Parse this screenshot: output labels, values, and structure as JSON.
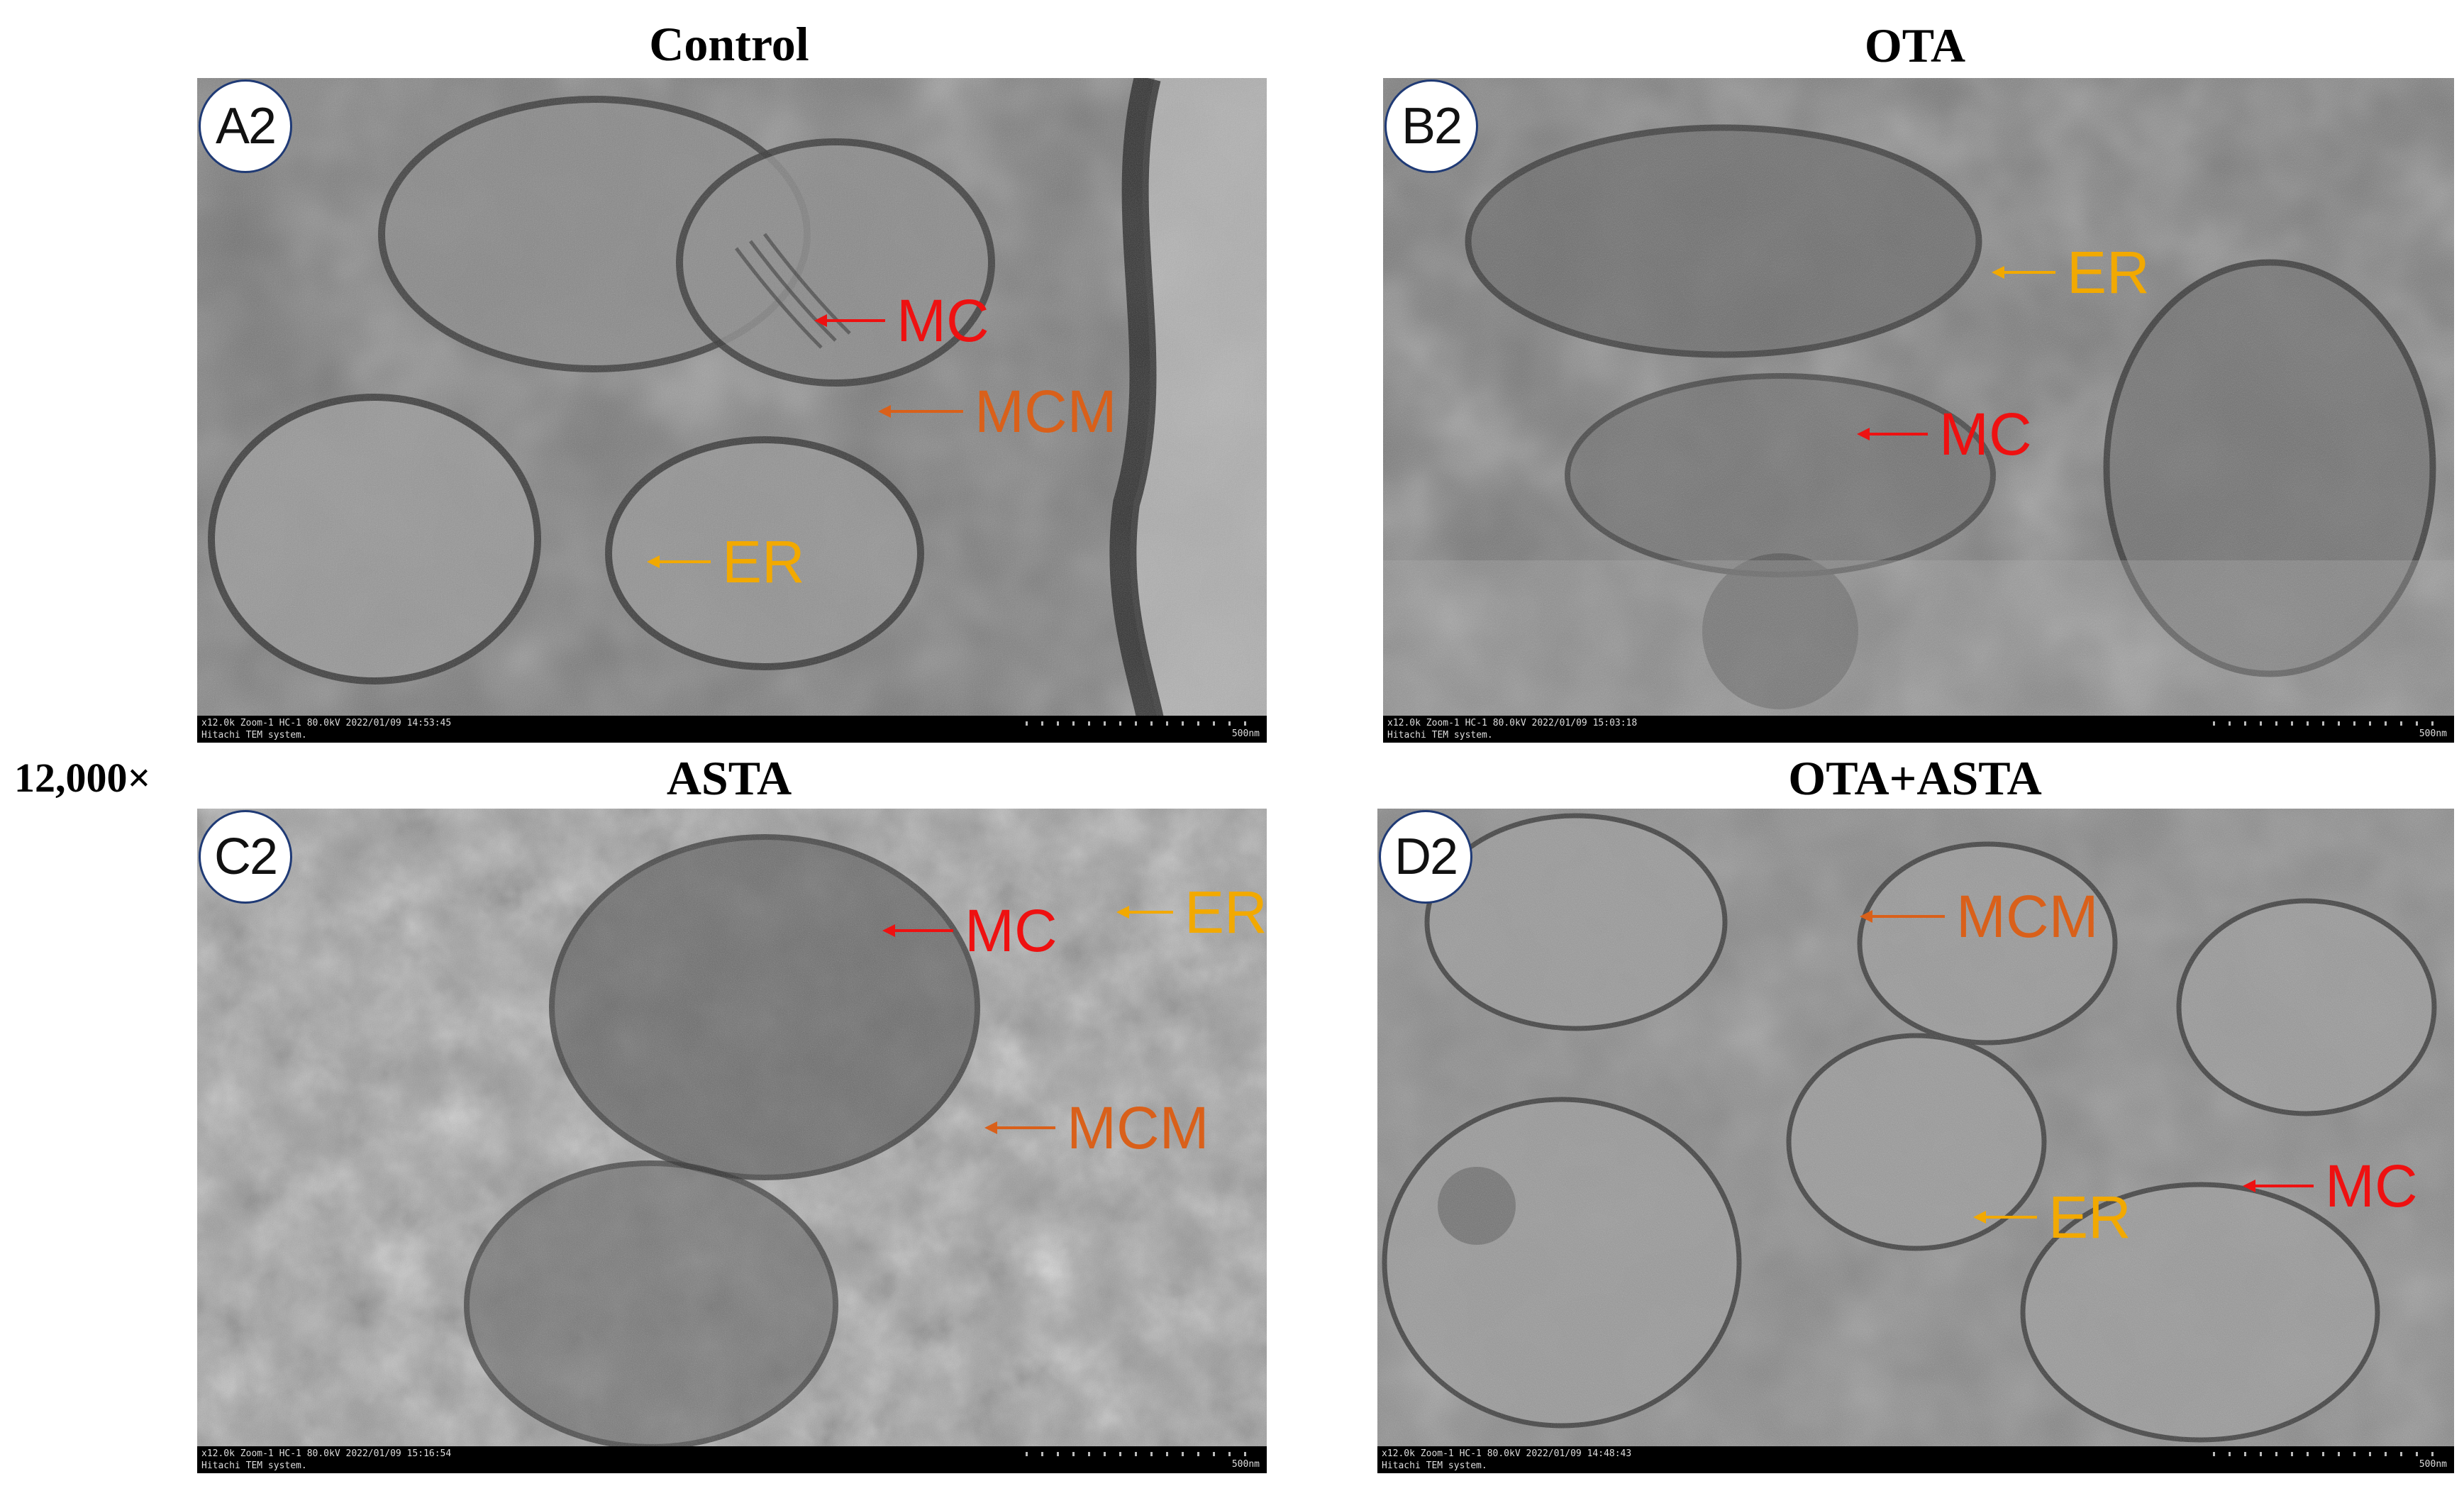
{
  "magnification": "12,000×",
  "colors": {
    "mc": "#ee1111",
    "mcm": "#d9601a",
    "er": "#f2a900"
  },
  "panels": [
    {
      "title": "Control",
      "badge": "A2",
      "status_line1": "x12.0k Zoom-1 HC-1 80.0kV 2022/01/09 14:53:45",
      "status_line2": "Hitachi TEM system.",
      "scale": "500nm",
      "annotations": [
        {
          "label": "MC",
          "color": "mc"
        },
        {
          "label": "MCM",
          "color": "mcm"
        },
        {
          "label": "ER",
          "color": "er"
        }
      ]
    },
    {
      "title": "OTA",
      "badge": "B2",
      "status_line1": "x12.0k Zoom-1 HC-1 80.0kV 2022/01/09 15:03:18",
      "status_line2": "Hitachi TEM system.",
      "scale": "500nm",
      "annotations": [
        {
          "label": "ER",
          "color": "er"
        },
        {
          "label": "MC",
          "color": "mc"
        }
      ]
    },
    {
      "title": "ASTA",
      "badge": "C2",
      "status_line1": "x12.0k Zoom-1 HC-1 80.0kV 2022/01/09 15:16:54",
      "status_line2": "Hitachi TEM system.",
      "scale": "500nm",
      "annotations": [
        {
          "label": "MC",
          "color": "mc"
        },
        {
          "label": "ER",
          "color": "er"
        },
        {
          "label": "MCM",
          "color": "mcm"
        }
      ]
    },
    {
      "title": "OTA+ASTA",
      "badge": "D2",
      "status_line1": "x12.0k Zoom-1 HC-1 80.0kV 2022/01/09 14:48:43",
      "status_line2": "Hitachi TEM system.",
      "scale": "500nm",
      "annotations": [
        {
          "label": "MCM",
          "color": "mcm"
        },
        {
          "label": "MC",
          "color": "mc"
        },
        {
          "label": "ER",
          "color": "er"
        }
      ]
    }
  ]
}
